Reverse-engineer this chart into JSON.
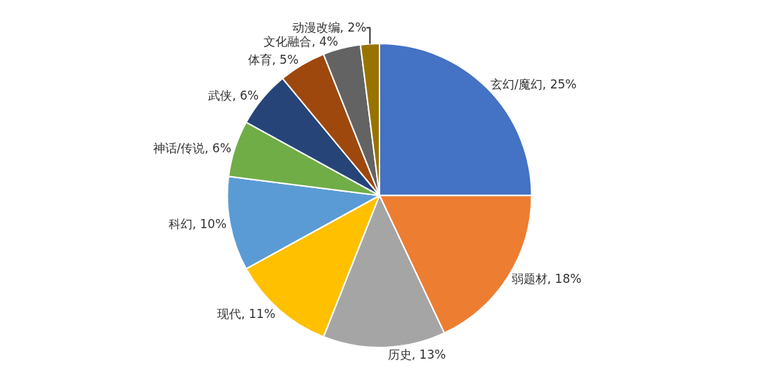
{
  "chart_data": {
    "type": "pie",
    "categories": [
      "玄幻/魔幻",
      "弱题材",
      "历史",
      "现代",
      "科幻",
      "神话/传说",
      "武侠",
      "体育",
      "文化融合",
      "动漫改编"
    ],
    "values": [
      25,
      18,
      13,
      11,
      10,
      6,
      6,
      5,
      4,
      2
    ],
    "value_labels": [
      "25%",
      "18%",
      "13%",
      "11%",
      "10%",
      "6%",
      "6%",
      "5%",
      "4%",
      "2%"
    ],
    "colors": [
      "#4472c4",
      "#ed7d31",
      "#a5a5a5",
      "#ffc000",
      "#5b9bd5",
      "#70ad47",
      "#264478",
      "#9e480e",
      "#636363",
      "#997300"
    ],
    "legend": false
  }
}
